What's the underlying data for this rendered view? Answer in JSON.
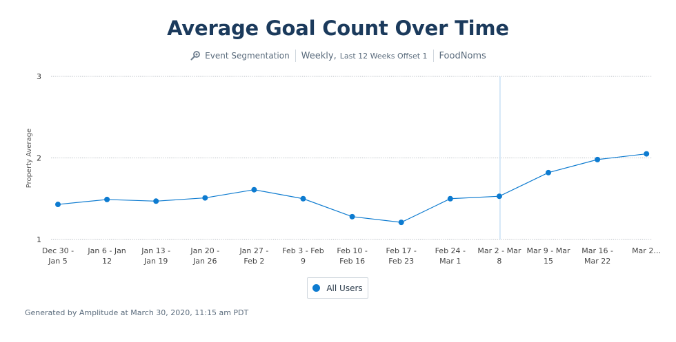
{
  "header": {
    "title": "Average Goal Count Over Time",
    "segmentation": "Event Segmentation",
    "interval": "Weekly,",
    "range": "Last 12 Weeks Offset 1",
    "project": "FoodNoms"
  },
  "chart_data": {
    "type": "line",
    "title": "Average Goal Count Over Time",
    "ylabel": "Property Average",
    "xlabel": "",
    "ylim": [
      1,
      3
    ],
    "yticks": [
      "3",
      "2",
      "1"
    ],
    "grid": true,
    "legend_position": "bottom-center",
    "categories": [
      [
        "Dec 30 -",
        "Jan 5"
      ],
      [
        "Jan 6 - Jan",
        "12"
      ],
      [
        "Jan 13 -",
        "Jan 19"
      ],
      [
        "Jan 20 -",
        "Jan 26"
      ],
      [
        "Jan 27 -",
        "Feb 2"
      ],
      [
        "Feb 3 - Feb",
        "9"
      ],
      [
        "Feb 10 -",
        "Feb 16"
      ],
      [
        "Feb 17 -",
        "Feb 23"
      ],
      [
        "Feb 24 -",
        "Mar 1"
      ],
      [
        "Mar 2 - Mar",
        "8"
      ],
      [
        "Mar 9 - Mar",
        "15"
      ],
      [
        "Mar 16 -",
        "Mar 22"
      ],
      [
        "Mar 2…"
      ]
    ],
    "series": [
      {
        "name": "All Users",
        "color": "#0d7bd0",
        "values": [
          1.43,
          1.49,
          1.47,
          1.51,
          1.61,
          1.5,
          1.28,
          1.21,
          1.5,
          1.53,
          1.82,
          1.98,
          2.05
        ]
      }
    ],
    "highlight_category_index": 9
  },
  "legend": {
    "label": "All Users"
  },
  "footer": {
    "text": "Generated by Amplitude at March 30, 2020, 11:15 am PDT"
  }
}
